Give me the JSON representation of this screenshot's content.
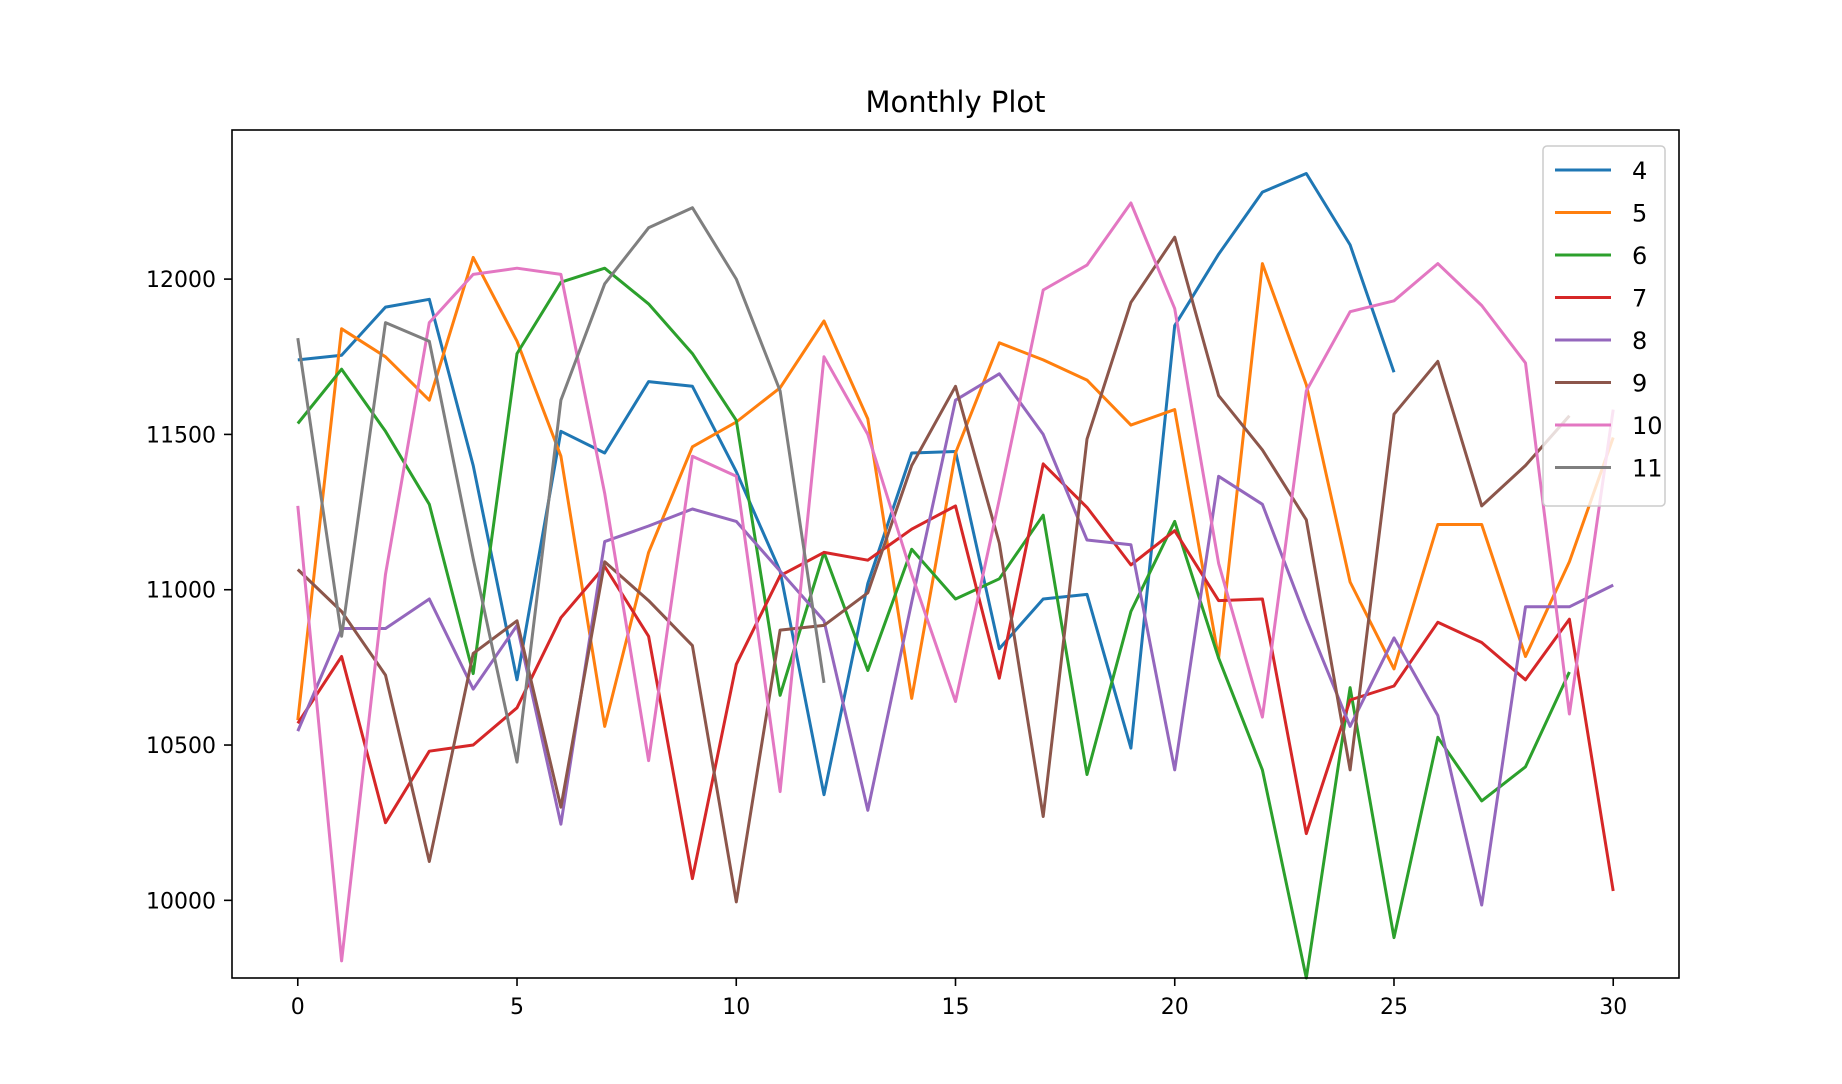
{
  "chart_data": {
    "type": "line",
    "title": "Monthly Plot",
    "xlabel": "",
    "ylabel": "",
    "xlim": [
      -1.5,
      31.5
    ],
    "ylim": [
      9750,
      12480
    ],
    "xticks": [
      0,
      5,
      10,
      15,
      20,
      25,
      30
    ],
    "yticks": [
      10000,
      10500,
      11000,
      11500,
      12000
    ],
    "grid": false,
    "legend_position": "top-right",
    "series": [
      {
        "name": "4",
        "color": "#1f77b4",
        "values": [
          11740,
          11755,
          11910,
          11935,
          11400,
          10710,
          11510,
          11440,
          11670,
          11655,
          11380,
          11060,
          10340,
          11020,
          11440,
          11445,
          10810,
          10970,
          10985,
          10490,
          11850,
          12080,
          12280,
          12340,
          12110,
          11700
        ]
      },
      {
        "name": "5",
        "color": "#ff7f0e",
        "values": [
          10580,
          11840,
          11750,
          11610,
          12070,
          11800,
          11430,
          10560,
          11120,
          11460,
          11540,
          11650,
          11865,
          11550,
          10650,
          11440,
          11795,
          11740,
          11675,
          11530,
          11580,
          10780,
          12050,
          11660,
          11025,
          10745,
          11210,
          11210,
          10785,
          11090,
          11490
        ]
      },
      {
        "name": "6",
        "color": "#2ca02c",
        "values": [
          11535,
          11710,
          11510,
          11275,
          10730,
          11760,
          11990,
          12035,
          11920,
          11760,
          11545,
          10660,
          11120,
          10740,
          11130,
          10970,
          11035,
          11240,
          10405,
          10930,
          11220,
          10780,
          10420,
          9750,
          10685,
          9880,
          10525,
          10320,
          10430,
          10735
        ]
      },
      {
        "name": "7",
        "color": "#d62728",
        "values": [
          10570,
          10785,
          10250,
          10480,
          10500,
          10620,
          10910,
          11075,
          10850,
          10070,
          10760,
          11045,
          11120,
          11095,
          11195,
          11270,
          10715,
          11405,
          11265,
          11080,
          11190,
          10965,
          10970,
          10215,
          10645,
          10690,
          10895,
          10830,
          10710,
          10905,
          10030
        ]
      },
      {
        "name": "8",
        "color": "#9467bd",
        "values": [
          10545,
          10875,
          10875,
          10970,
          10680,
          10885,
          10245,
          11155,
          11205,
          11260,
          11220,
          11060,
          10900,
          10290,
          10960,
          11610,
          11695,
          11500,
          11160,
          11145,
          10420,
          11365,
          11275,
          10905,
          10560,
          10845,
          10595,
          9985,
          10945,
          10945,
          11015
        ]
      },
      {
        "name": "9",
        "color": "#8c564b",
        "values": [
          11065,
          10930,
          10725,
          10125,
          10795,
          10900,
          10300,
          11090,
          10965,
          10820,
          9995,
          10870,
          10885,
          10990,
          11400,
          11655,
          11150,
          10270,
          11485,
          11925,
          12135,
          11625,
          11450,
          11225,
          10420,
          11565,
          11735,
          11270,
          11400,
          11560
        ]
      },
      {
        "name": "10",
        "color": "#e377c2",
        "values": [
          11270,
          9805,
          11050,
          11860,
          12015,
          12035,
          12015,
          11310,
          10450,
          11430,
          11365,
          10350,
          11750,
          11500,
          11050,
          10640,
          11290,
          11965,
          12045,
          12245,
          11905,
          11085,
          10590,
          11640,
          11895,
          11930,
          12050,
          11915,
          11730,
          10600,
          11580
        ]
      },
      {
        "name": "11",
        "color": "#7f7f7f",
        "values": [
          11810,
          10850,
          11860,
          11800,
          11100,
          10445,
          11610,
          11985,
          12165,
          12230,
          12000,
          11640,
          10700
        ]
      }
    ]
  }
}
